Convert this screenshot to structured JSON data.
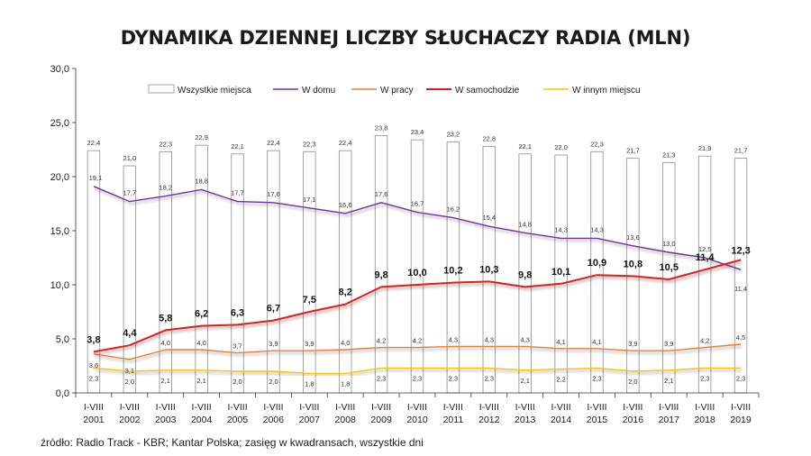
{
  "title": "DYNAMIKA DZIENNEJ LICZBY SŁUCHACZY RADIA (MLN)",
  "source": "źródło: Radio Track - KBR; Kantar Polska; zasięg w kwadransach, wszystkie dni",
  "chart_data": {
    "type": "bar",
    "ylim": [
      0,
      30
    ],
    "yticks": [
      "0,0",
      "5,0",
      "10,0",
      "15,0",
      "20,0",
      "25,0",
      "30,0"
    ],
    "categories": [
      [
        "I-VIII",
        "2001"
      ],
      [
        "I-VIII",
        "2002"
      ],
      [
        "I-VIII",
        "2003"
      ],
      [
        "I-VIII",
        "2004"
      ],
      [
        "I-VIII",
        "2005"
      ],
      [
        "I-VIII",
        "2006"
      ],
      [
        "I-VIII",
        "2007"
      ],
      [
        "I-VIII",
        "2008"
      ],
      [
        "I-VIII",
        "2009"
      ],
      [
        "I-VIII",
        "2010"
      ],
      [
        "I-VIII",
        "2011"
      ],
      [
        "I-VIII",
        "2012"
      ],
      [
        "I-VIII",
        "2013"
      ],
      [
        "I-VIII",
        "2014"
      ],
      [
        "I-VIII",
        "2015"
      ],
      [
        "I-VIII",
        "2016"
      ],
      [
        "I-VIII",
        "2017"
      ],
      [
        "I-VIII",
        "2018"
      ],
      [
        "I-VIII",
        "2019"
      ]
    ],
    "legend_position": "top",
    "grid": false,
    "series": [
      {
        "name": "Wszystkie miejsca",
        "kind": "bar",
        "color": "#d9d9d9",
        "values": [
          22.4,
          21.0,
          22.3,
          22.9,
          22.1,
          22.4,
          22.3,
          22.4,
          23.8,
          23.4,
          23.2,
          22.8,
          22.1,
          22.0,
          22.3,
          21.7,
          21.3,
          21.9,
          21.7
        ],
        "labels": [
          "22,4",
          "21,0",
          "22,3",
          "22,9",
          "22,1",
          "22,4",
          "22,3",
          "22,4",
          "23,8",
          "23,4",
          "23,2",
          "22,8",
          "22,1",
          "22,0",
          "22,3",
          "21,7",
          "21,3",
          "21,9",
          "21,7"
        ]
      },
      {
        "name": "W domu",
        "kind": "line",
        "color": "#7030a0",
        "values": [
          19.1,
          17.7,
          18.2,
          18.8,
          17.7,
          17.6,
          17.1,
          16.6,
          17.6,
          16.7,
          16.2,
          15.4,
          14.8,
          14.3,
          14.3,
          13.6,
          13.0,
          12.5,
          11.4
        ],
        "labels": [
          "19,1",
          "17,7",
          "18,2",
          "18,8",
          "17,7",
          "17,6",
          "17,1",
          "16,6",
          "17,6",
          "16,7",
          "16,2",
          "15,4",
          "14,8",
          "14,3",
          "14,3",
          "13,6",
          "13,0",
          "12,5",
          "11,4"
        ]
      },
      {
        "name": "W pracy",
        "kind": "line",
        "color": "#ed7d31",
        "values": [
          3.6,
          3.1,
          4.0,
          4.0,
          3.7,
          3.9,
          3.9,
          4.0,
          4.2,
          4.2,
          4.3,
          4.3,
          4.3,
          4.1,
          4.1,
          3.9,
          3.9,
          4.2,
          4.5
        ],
        "labels": [
          "3,6",
          "3,1",
          "4,0",
          "4,0",
          "3,7",
          "3,9",
          "3,9",
          "4,0",
          "4,2",
          "4,2",
          "4,3",
          "4,3",
          "4,3",
          "4,1",
          "4,1",
          "3,9",
          "3,9",
          "4,2",
          "4,5"
        ]
      },
      {
        "name": "W samochodzie",
        "kind": "line",
        "color": "#e31a1c",
        "values": [
          3.8,
          4.4,
          5.8,
          6.2,
          6.3,
          6.7,
          7.5,
          8.2,
          9.8,
          10.0,
          10.2,
          10.3,
          9.8,
          10.1,
          10.9,
          10.8,
          10.5,
          11.4,
          12.3
        ],
        "labels": [
          "3,8",
          "4,4",
          "5,8",
          "6,2",
          "6,3",
          "6,7",
          "7,5",
          "8,2",
          "9,8",
          "10,0",
          "10,2",
          "10,3",
          "9,8",
          "10,1",
          "10,9",
          "10,8",
          "10,5",
          "11,4",
          "12,3"
        ]
      },
      {
        "name": "W innym miejscu",
        "kind": "line",
        "color": "#ffc000",
        "values": [
          2.3,
          2.0,
          2.1,
          2.1,
          2.0,
          2.0,
          1.8,
          1.8,
          2.3,
          2.3,
          2.3,
          2.3,
          2.1,
          2.2,
          2.3,
          2.0,
          2.1,
          2.3,
          2.3
        ],
        "labels": [
          "2,3",
          "2,0",
          "2,1",
          "2,1",
          "2,0",
          "2,0",
          "1,8",
          "1,8",
          "2,3",
          "2,3",
          "2,3",
          "2,3",
          "2,1",
          "2,2",
          "2,3",
          "2,0",
          "2,1",
          "2,3",
          "2,3"
        ]
      }
    ]
  }
}
